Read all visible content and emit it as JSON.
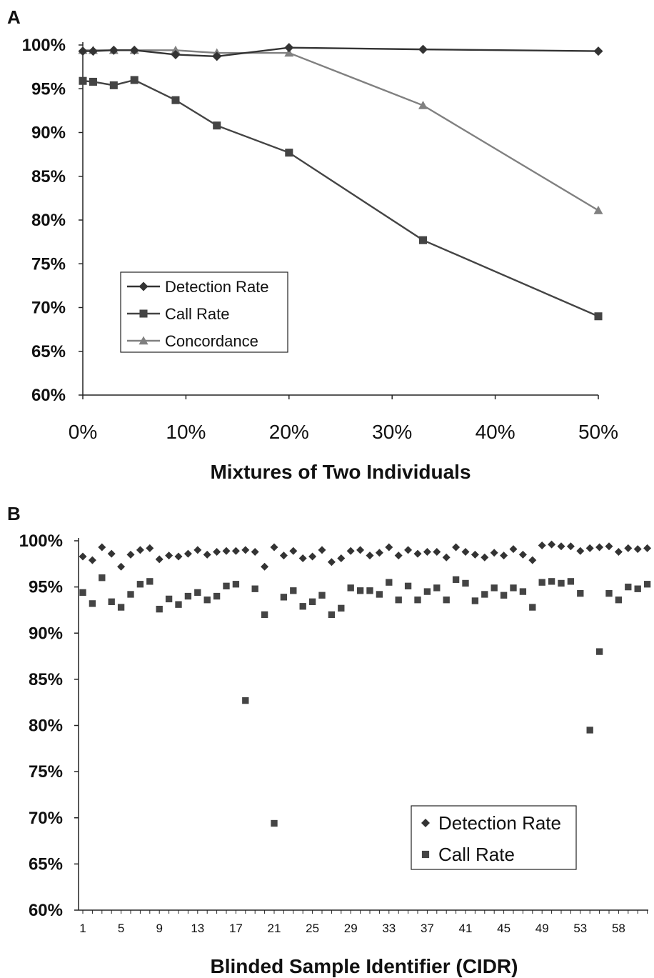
{
  "chart_data": [
    {
      "panel": "A",
      "type": "line",
      "xlabel": "Mixtures of Two Individuals",
      "ylabel": "",
      "x": [
        0,
        1,
        3,
        5,
        9,
        13,
        20,
        33,
        50
      ],
      "xlim": [
        0,
        50
      ],
      "ylim": [
        60,
        100
      ],
      "xticks": [
        "0%",
        "10%",
        "20%",
        "30%",
        "40%",
        "50%"
      ],
      "xtick_values": [
        0,
        10,
        20,
        30,
        40,
        50
      ],
      "yticks": [
        "60%",
        "65%",
        "70%",
        "75%",
        "80%",
        "85%",
        "90%",
        "95%",
        "100%"
      ],
      "ytick_values": [
        60,
        65,
        70,
        75,
        80,
        85,
        90,
        95,
        100
      ],
      "legend_position": "lower-left",
      "series": [
        {
          "name": "Detection Rate",
          "marker": "diamond",
          "color": "#333333",
          "values": [
            99.3,
            99.3,
            99.4,
            99.4,
            98.9,
            98.7,
            99.7,
            99.5,
            99.3
          ]
        },
        {
          "name": "Call Rate",
          "marker": "square",
          "color": "#444444",
          "values": [
            95.9,
            95.8,
            95.4,
            96.0,
            93.7,
            90.8,
            87.7,
            77.7,
            69.0
          ]
        },
        {
          "name": "Concordance",
          "marker": "triangle",
          "color": "#808080",
          "values": [
            99.4,
            99.4,
            99.4,
            99.4,
            99.4,
            99.1,
            99.1,
            93.1,
            81.1
          ]
        }
      ]
    },
    {
      "panel": "B",
      "type": "scatter",
      "xlabel": "Blinded Sample Identifier (CIDR)",
      "ylabel": "",
      "ylim": [
        60,
        100
      ],
      "xticks": [
        "1",
        "5",
        "9",
        "13",
        "17",
        "21",
        "25",
        "29",
        "33",
        "37",
        "41",
        "45",
        "49",
        "53",
        "58"
      ],
      "yticks": [
        "60%",
        "65%",
        "70%",
        "75%",
        "80%",
        "85%",
        "90%",
        "95%",
        "100%"
      ],
      "ytick_values": [
        60,
        65,
        70,
        75,
        80,
        85,
        90,
        95,
        100
      ],
      "legend_position": "lower-right",
      "series": [
        {
          "name": "Detection Rate",
          "marker": "diamond",
          "color": "#333333",
          "values": [
            98.3,
            97.9,
            99.3,
            98.6,
            97.2,
            98.5,
            99.0,
            99.2,
            98.0,
            98.4,
            98.3,
            98.6,
            99.0,
            98.5,
            98.8,
            98.9,
            98.9,
            99.0,
            98.8,
            97.2,
            99.3,
            98.4,
            98.9,
            98.1,
            98.3,
            99.0,
            97.7,
            98.1,
            98.9,
            99.0,
            98.4,
            98.7,
            99.3,
            98.4,
            99.0,
            98.6,
            98.8,
            98.8,
            98.2,
            99.3,
            98.8,
            98.5,
            98.2,
            98.7,
            98.4,
            99.1,
            98.5,
            97.9,
            99.5,
            99.6,
            99.4,
            99.4,
            98.9,
            99.2,
            99.3,
            99.4,
            98.8,
            99.2,
            99.1,
            99.2
          ]
        },
        {
          "name": "Call Rate",
          "marker": "square",
          "color": "#444444",
          "values": [
            94.4,
            93.2,
            96.0,
            93.4,
            92.8,
            94.2,
            95.3,
            95.6,
            92.6,
            93.7,
            93.1,
            94.0,
            94.4,
            93.6,
            94.0,
            95.1,
            95.3,
            82.7,
            94.8,
            92.0,
            69.4,
            93.9,
            94.6,
            92.9,
            93.4,
            94.1,
            92.0,
            92.7,
            94.9,
            94.6,
            94.6,
            94.2,
            95.5,
            93.6,
            95.1,
            93.6,
            94.5,
            94.9,
            93.6,
            95.8,
            95.4,
            93.5,
            94.2,
            94.9,
            94.1,
            94.9,
            94.5,
            92.8,
            95.5,
            95.6,
            95.4,
            95.6,
            94.3,
            79.5,
            88.0,
            94.3,
            93.6,
            95.0,
            94.8,
            95.3
          ]
        }
      ]
    }
  ]
}
